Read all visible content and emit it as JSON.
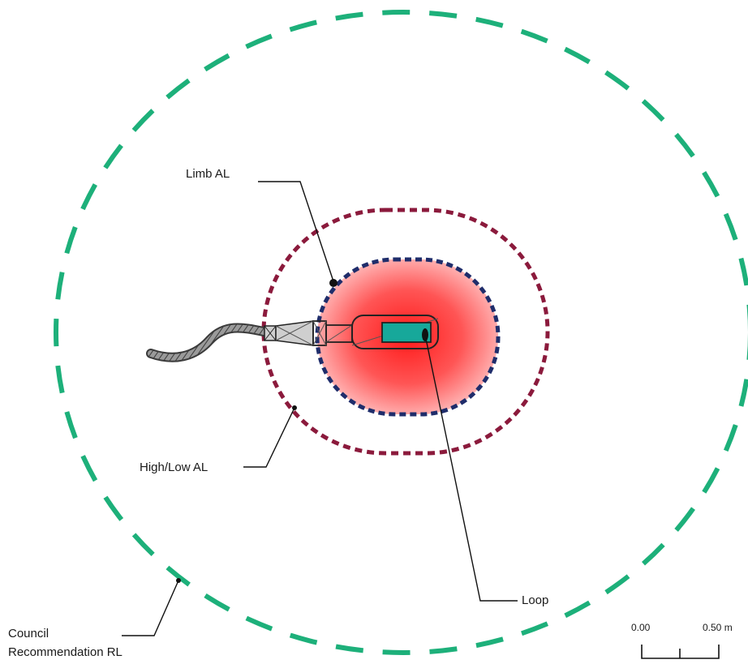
{
  "labels": {
    "limb_al": "Limb AL",
    "high_low_al": "High/Low AL",
    "loop": "Loop",
    "council_line1": "Council",
    "council_line2": "Recommendation RL"
  },
  "scale_bar": {
    "start_label": "0.00",
    "end_label": "0.50 m"
  },
  "colors": {
    "council_boundary": "#1db07a",
    "high_low_boundary": "#8b1a3c",
    "limb_boundary": "#1f2d6b",
    "field_core": "#ff2a2a",
    "coil": "#17a89a"
  }
}
